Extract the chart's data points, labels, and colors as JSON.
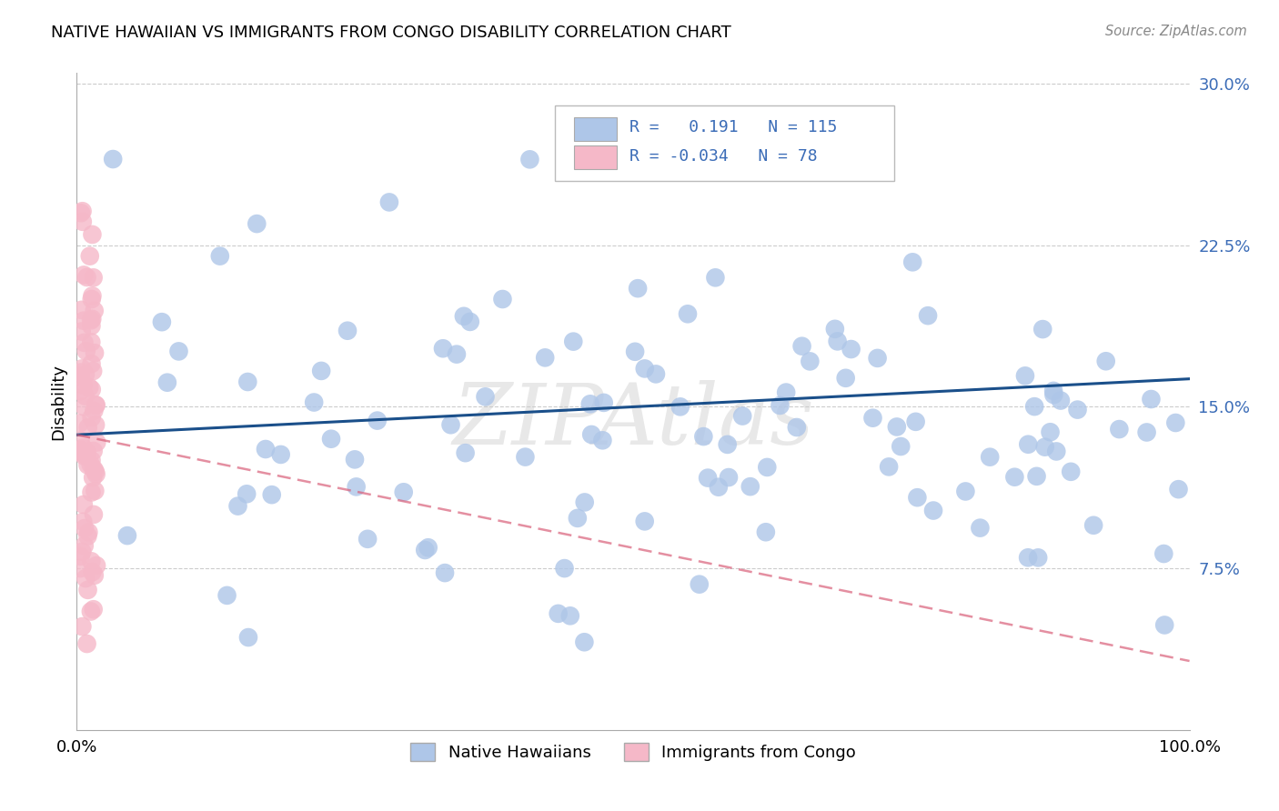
{
  "title": "NATIVE HAWAIIAN VS IMMIGRANTS FROM CONGO DISABILITY CORRELATION CHART",
  "source": "Source: ZipAtlas.com",
  "ylabel": "Disability",
  "xlim": [
    0.0,
    1.0
  ],
  "ylim": [
    0.0,
    0.305
  ],
  "ytick_vals": [
    0.075,
    0.15,
    0.225,
    0.3
  ],
  "ytick_labels": [
    "7.5%",
    "15.0%",
    "22.5%",
    "30.0%"
  ],
  "xtick_vals": [
    0.0,
    0.1,
    0.2,
    0.3,
    0.4,
    0.5,
    0.6,
    0.7,
    0.8,
    0.9,
    1.0
  ],
  "xtick_labels": [
    "0.0%",
    "",
    "",
    "",
    "",
    "",
    "",
    "",
    "",
    "",
    "100.0%"
  ],
  "blue_color": "#aec6e8",
  "pink_color": "#f5b8c8",
  "blue_line_color": "#1a4f8a",
  "pink_line_color": "#d9607a",
  "blue_R": 0.191,
  "blue_N": 115,
  "pink_R": -0.034,
  "pink_N": 78,
  "legend_label_blue": "Native Hawaiians",
  "legend_label_pink": "Immigrants from Congo",
  "watermark": "ZIPAtlas",
  "blue_line_x": [
    0.0,
    1.0
  ],
  "blue_line_y": [
    0.137,
    0.163
  ],
  "pink_line_x": [
    0.0,
    1.0
  ],
  "pink_line_y": [
    0.137,
    0.032
  ]
}
